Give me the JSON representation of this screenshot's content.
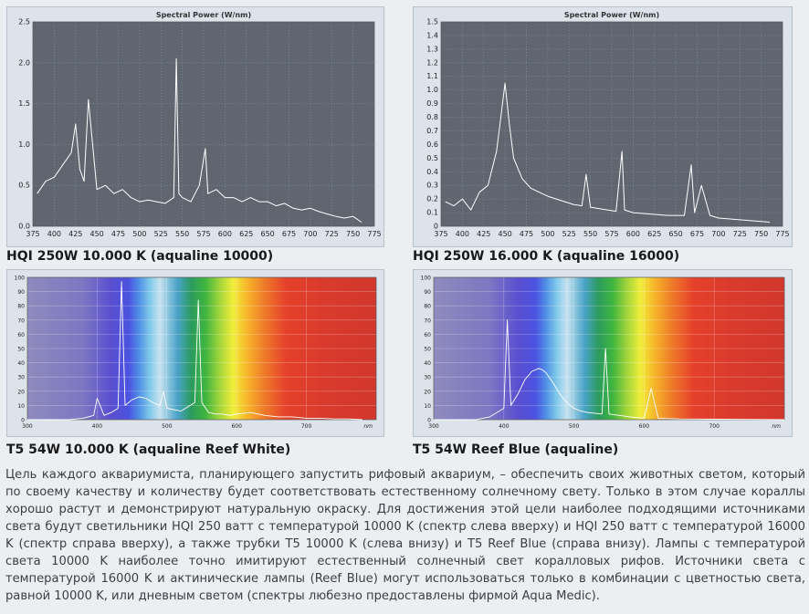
{
  "captions": {
    "top_left": "HQI 250W 10.000 K (aqualine 10000)",
    "top_right": "HQI 250W 16.000 K (aqualine 16000)",
    "bottom_left": "T5 54W 10.000 K (aqualine Reef White)",
    "bottom_right": "T5 54W Reef Blue (aqualine)"
  },
  "paragraph": "Цель каждого аквариумиста, планирующего запустить рифовый аквариум, – обеспечить своих животных светом, который по своему качеству и количеству будет соответствовать естественному солнечному свету. Только в этом случае кораллы хорошо растут и демонстрируют натуральную окраску. Для достижения этой цели наиболее подходящими источниками света будут светильники HQI 250 ватт с температурой 10000 K (спектр слева вверху) и HQI 250 ватт с температурой 16000 K (спектр справа вверху), а также трубки T5 10000 K (слева внизу) и T5 Reef Blue (справа внизу). Лампы с температурой света 10000 K наиболее точно имитируют естественный солнечный свет коралловых рифов. Источники света с температурой 16000 K и актинические лампы (Reef Blue) могут использоваться только в комбинации с цветностью света, равной 10000 K, или дневным светом (спектры любезно предоставлены фирмой Aqua Medic).",
  "colors": {
    "plot_bg": "#5f6670",
    "trace": "#ffffff",
    "grid": "#8a919b"
  },
  "chart_data": [
    {
      "type": "line",
      "title": "Spectral Power (W/nm)",
      "x_ticks": [
        "375",
        "400",
        "425",
        "450",
        "475",
        "500",
        "525",
        "550",
        "575",
        "600",
        "625",
        "650",
        "675",
        "700",
        "725",
        "750",
        "775"
      ],
      "y_ticks": [
        "0.0",
        "0.5",
        "1.0",
        "1.5",
        "2.0",
        "2.5"
      ],
      "xlim": [
        375,
        775
      ],
      "ylim": [
        0,
        2.5
      ],
      "x": [
        380,
        390,
        400,
        410,
        420,
        425,
        430,
        435,
        440,
        450,
        460,
        470,
        480,
        490,
        500,
        510,
        520,
        530,
        540,
        543,
        546,
        550,
        560,
        570,
        577,
        580,
        590,
        600,
        610,
        620,
        630,
        640,
        650,
        660,
        670,
        680,
        690,
        700,
        710,
        720,
        730,
        740,
        750,
        760
      ],
      "y": [
        0.4,
        0.55,
        0.6,
        0.75,
        0.9,
        1.25,
        0.7,
        0.55,
        1.55,
        0.45,
        0.5,
        0.4,
        0.45,
        0.35,
        0.3,
        0.32,
        0.3,
        0.28,
        0.35,
        2.05,
        0.4,
        0.35,
        0.3,
        0.5,
        0.95,
        0.4,
        0.45,
        0.35,
        0.35,
        0.3,
        0.35,
        0.3,
        0.3,
        0.25,
        0.28,
        0.22,
        0.2,
        0.22,
        0.18,
        0.15,
        0.12,
        0.1,
        0.12,
        0.05
      ]
    },
    {
      "type": "line",
      "title": "Spectral Power (W/nm)",
      "x_ticks": [
        "375",
        "400",
        "425",
        "450",
        "475",
        "500",
        "525",
        "550",
        "575",
        "600",
        "625",
        "650",
        "675",
        "700",
        "725",
        "750",
        "775"
      ],
      "y_ticks": [
        "0",
        "0.1",
        "0.2",
        "0.3",
        "0.4",
        "0.5",
        "0.6",
        "0.7",
        "0.8",
        "0.9",
        "1.0",
        "1.1",
        "1.2",
        "1.3",
        "1.4",
        "1.5"
      ],
      "xlim": [
        375,
        775
      ],
      "ylim": [
        0,
        1.5
      ],
      "x": [
        380,
        390,
        400,
        410,
        420,
        430,
        440,
        445,
        450,
        455,
        460,
        470,
        480,
        490,
        500,
        510,
        520,
        530,
        540,
        545,
        550,
        560,
        570,
        580,
        587,
        590,
        600,
        620,
        640,
        660,
        668,
        672,
        680,
        690,
        700,
        720,
        740,
        760
      ],
      "y": [
        0.18,
        0.15,
        0.2,
        0.12,
        0.25,
        0.3,
        0.55,
        0.8,
        1.05,
        0.75,
        0.5,
        0.35,
        0.28,
        0.25,
        0.22,
        0.2,
        0.18,
        0.16,
        0.15,
        0.38,
        0.14,
        0.13,
        0.12,
        0.11,
        0.55,
        0.12,
        0.1,
        0.09,
        0.08,
        0.08,
        0.45,
        0.1,
        0.3,
        0.08,
        0.06,
        0.05,
        0.04,
        0.03
      ]
    },
    {
      "type": "line",
      "x_ticks": [
        "300",
        "400",
        "500",
        "600",
        "700"
      ],
      "x_unit": "nm",
      "y_ticks": [
        "0",
        "10",
        "20",
        "30",
        "40",
        "50",
        "60",
        "70",
        "80",
        "90",
        "100"
      ],
      "xlim": [
        300,
        800
      ],
      "ylim": [
        0,
        100
      ],
      "x": [
        300,
        360,
        380,
        395,
        400,
        410,
        420,
        430,
        435,
        440,
        450,
        460,
        470,
        480,
        490,
        495,
        500,
        520,
        540,
        545,
        550,
        560,
        570,
        580,
        590,
        600,
        620,
        640,
        660,
        680,
        700,
        720,
        740,
        760,
        780
      ],
      "y": [
        0,
        0,
        1,
        3,
        15,
        3,
        5,
        8,
        97,
        10,
        14,
        16,
        15,
        12,
        10,
        20,
        8,
        6,
        12,
        84,
        12,
        5,
        4,
        4,
        3,
        4,
        5,
        3,
        2,
        2,
        1,
        1,
        0.5,
        0.5,
        0
      ]
    },
    {
      "type": "line",
      "x_ticks": [
        "300",
        "400",
        "500",
        "600",
        "700"
      ],
      "x_unit": "nm",
      "y_ticks": [
        "0",
        "10",
        "20",
        "30",
        "40",
        "50",
        "60",
        "70",
        "80",
        "90",
        "100"
      ],
      "xlim": [
        300,
        800
      ],
      "ylim": [
        0,
        100
      ],
      "x": [
        300,
        360,
        380,
        400,
        405,
        410,
        420,
        430,
        440,
        450,
        455,
        460,
        470,
        480,
        490,
        500,
        510,
        520,
        540,
        545,
        550,
        580,
        600,
        610,
        620,
        650,
        700,
        750,
        800
      ],
      "y": [
        0,
        0,
        2,
        8,
        70,
        10,
        18,
        28,
        34,
        36,
        35,
        33,
        26,
        18,
        12,
        8,
        6,
        5,
        4,
        50,
        4,
        2,
        1,
        22,
        1,
        0.5,
        0.3,
        0.2,
        0
      ]
    }
  ]
}
